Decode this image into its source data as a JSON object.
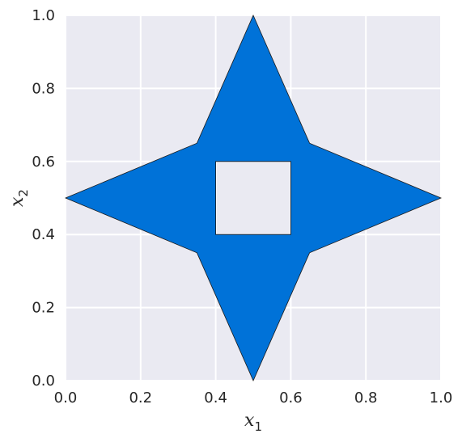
{
  "chart_data": {
    "type": "area",
    "title": "",
    "xlabel": "x",
    "xlabel_sub": "1",
    "ylabel": "x",
    "ylabel_sub": "2",
    "xlim": [
      0.0,
      1.0
    ],
    "ylim": [
      0.0,
      1.0
    ],
    "xticks": [
      "0.0",
      "0.2",
      "0.4",
      "0.6",
      "0.8",
      "1.0"
    ],
    "xtick_values": [
      0.0,
      0.2,
      0.4,
      0.6,
      0.8,
      1.0
    ],
    "yticks": [
      "0.0",
      "0.2",
      "0.4",
      "0.6",
      "0.8",
      "1.0"
    ],
    "ytick_values": [
      0.0,
      0.2,
      0.4,
      0.6,
      0.8,
      1.0
    ],
    "grid": true,
    "outer_boundary": [
      [
        0.5,
        1.0
      ],
      [
        0.65,
        0.65
      ],
      [
        1.0,
        0.5
      ],
      [
        0.65,
        0.35
      ],
      [
        0.5,
        0.0
      ],
      [
        0.35,
        0.35
      ],
      [
        0.0,
        0.5
      ],
      [
        0.35,
        0.65
      ]
    ],
    "hole_boundary": [
      [
        0.4,
        0.4
      ],
      [
        0.6,
        0.4
      ],
      [
        0.6,
        0.6
      ],
      [
        0.4,
        0.6
      ]
    ],
    "colors": {
      "fill": "#0072d8",
      "edge": "#1a1a1a",
      "background": "#eaeaf2",
      "grid": "#ffffff"
    }
  }
}
